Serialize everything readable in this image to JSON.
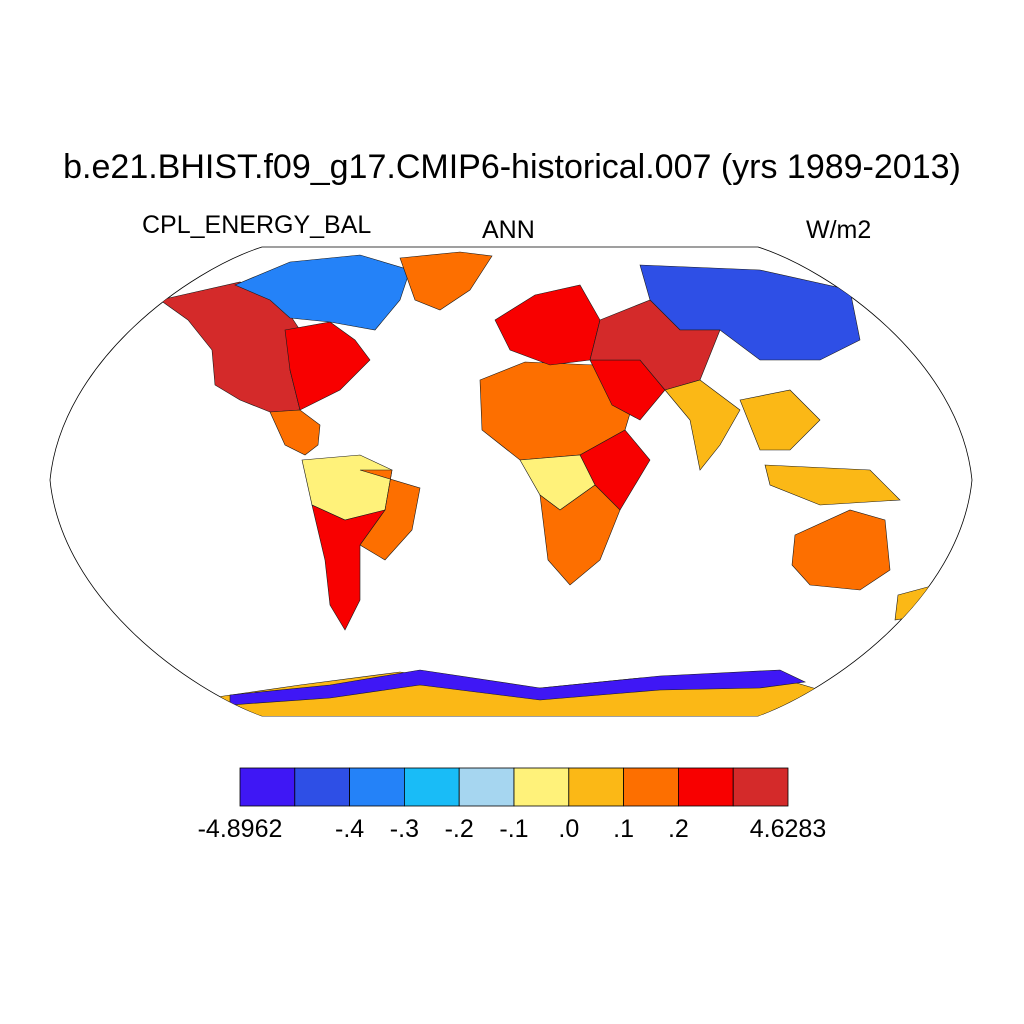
{
  "title": "b.e21.BHIST.f09_g17.CMIP6-historical.007 (yrs 1989-2013)",
  "left_label": "CPL_ENERGY_BAL",
  "center_label": "ANN",
  "right_label": "W/m2",
  "projection": "Robinson",
  "colorbar": {
    "colors": [
      "#3f17f5",
      "#2e4fe6",
      "#2482f8",
      "#19bcf7",
      "#a6d6f0",
      "#fff27a",
      "#fbb816",
      "#fd6f00",
      "#f80000",
      "#d42a2a"
    ],
    "labels": [
      "-4.8962",
      "-.4",
      "-.3",
      "-.2",
      "-.1",
      ".0",
      ".1",
      ".2",
      "4.6283"
    ],
    "label_boundaries": [
      0,
      2,
      3,
      4,
      5,
      6,
      7,
      8,
      10
    ]
  },
  "regions": [
    {
      "name": "north-america-west",
      "category": 9
    },
    {
      "name": "north-america-east",
      "category": 8
    },
    {
      "name": "canada-arctic",
      "category": 2
    },
    {
      "name": "greenland",
      "category": 7
    },
    {
      "name": "central-america",
      "category": 7
    },
    {
      "name": "south-america-amazon",
      "category": 5
    },
    {
      "name": "south-america-east",
      "category": 7
    },
    {
      "name": "south-america-south",
      "category": 8
    },
    {
      "name": "africa-north",
      "category": 7
    },
    {
      "name": "africa-east",
      "category": 8
    },
    {
      "name": "africa-central",
      "category": 5
    },
    {
      "name": "africa-south",
      "category": 7
    },
    {
      "name": "europe",
      "category": 8
    },
    {
      "name": "siberia",
      "category": 1
    },
    {
      "name": "middle-east",
      "category": 8
    },
    {
      "name": "central-asia",
      "category": 9
    },
    {
      "name": "india",
      "category": 6
    },
    {
      "name": "southeast-asia",
      "category": 6
    },
    {
      "name": "indonesia",
      "category": 6
    },
    {
      "name": "australia",
      "category": 7
    },
    {
      "name": "new-zealand",
      "category": 6
    },
    {
      "name": "antarctica",
      "category": 6
    },
    {
      "name": "antarctica-coast",
      "category": 0
    }
  ]
}
